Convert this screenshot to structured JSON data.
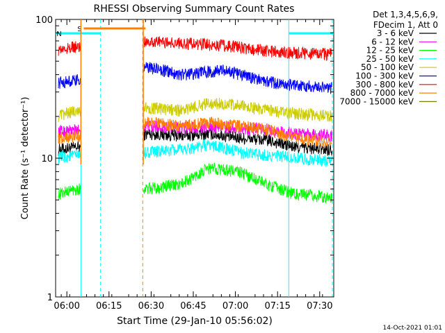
{
  "chart_data": {
    "type": "line",
    "title": "RHESSI Observing Summary Count Rates",
    "xlabel": "Start Time (29-Jan-10 05:56:02)",
    "ylabel": "Count Rate (s⁻¹ detector⁻¹)",
    "y_scale": "log",
    "ylim": [
      1,
      100
    ],
    "xlim_minutes_after_0556": [
      0,
      99
    ],
    "x_ticks": [
      "06:00",
      "06:15",
      "06:30",
      "06:45",
      "07:00",
      "07:15",
      "07:30"
    ],
    "y_ticks": [
      "1",
      "10",
      "100"
    ],
    "legend": {
      "position": "top-right",
      "header": [
        "Det 1,3,4,5,6,9,",
        "FDecim 1, Att 0"
      ]
    },
    "footer_date": "14-Oct-2021 01:01",
    "flags": [
      {
        "label": "S",
        "color": "#ff8000",
        "segments": [
          [
            10,
            32
          ]
        ]
      },
      {
        "label": "N",
        "color": "#00ffff",
        "segments": [
          [
            0,
            16
          ],
          [
            83,
            99
          ]
        ]
      }
    ],
    "vlines": [
      {
        "time": 9,
        "color": "#00ffff",
        "style": "solid"
      },
      {
        "time": 16,
        "color": "#00ffff",
        "style": "dashed"
      },
      {
        "time": 31,
        "color": "#ff8000",
        "style": "dashed"
      },
      {
        "time": 83,
        "color": "#00ffff",
        "style": "solid"
      },
      {
        "time": 98.5,
        "color": "#00ffff",
        "style": "dashed"
      }
    ],
    "series": [
      {
        "name": "3 - 6 keV",
        "color": "#000000",
        "values": [
          [
            1,
            11.5
          ],
          [
            8,
            12
          ],
          [
            33,
            15
          ],
          [
            45,
            14.5
          ],
          [
            55,
            15
          ],
          [
            65,
            14
          ],
          [
            75,
            13.5
          ],
          [
            85,
            12
          ],
          [
            98.5,
            11.5
          ]
        ]
      },
      {
        "name": "6 - 12 keV",
        "color": "#ff00ff",
        "values": [
          [
            1,
            15.5
          ],
          [
            8,
            16
          ],
          [
            33,
            17
          ],
          [
            45,
            16.5
          ],
          [
            55,
            17
          ],
          [
            65,
            16.5
          ],
          [
            75,
            16
          ],
          [
            85,
            15
          ],
          [
            98.5,
            14.5
          ]
        ]
      },
      {
        "name": "12 - 25 keV",
        "color": "#00ff00",
        "values": [
          [
            1,
            5.5
          ],
          [
            7,
            6
          ],
          [
            33,
            6
          ],
          [
            45,
            6.5
          ],
          [
            55,
            8.5
          ],
          [
            65,
            8
          ],
          [
            75,
            6.5
          ],
          [
            85,
            5.5
          ],
          [
            98.5,
            5.2
          ]
        ]
      },
      {
        "name": "25 - 50 keV",
        "color": "#00ffff",
        "values": [
          [
            1,
            10
          ],
          [
            7,
            10.5
          ],
          [
            33,
            11
          ],
          [
            45,
            11.5
          ],
          [
            55,
            12.5
          ],
          [
            65,
            11
          ],
          [
            75,
            10.5
          ],
          [
            85,
            10
          ],
          [
            98.5,
            9.5
          ]
        ]
      },
      {
        "name": "50 - 100 keV",
        "color": "#cccc00",
        "values": [
          [
            1,
            20
          ],
          [
            7,
            22
          ],
          [
            33,
            23
          ],
          [
            45,
            22
          ],
          [
            55,
            25
          ],
          [
            65,
            24
          ],
          [
            75,
            22
          ],
          [
            85,
            21
          ],
          [
            98.5,
            20
          ]
        ]
      },
      {
        "name": "100 - 300 keV",
        "color": "#0000ff",
        "values": [
          [
            1,
            35
          ],
          [
            7,
            36
          ],
          [
            33,
            45
          ],
          [
            45,
            40
          ],
          [
            60,
            43
          ],
          [
            70,
            38
          ],
          [
            80,
            34
          ],
          [
            90,
            33
          ],
          [
            98.5,
            32
          ]
        ]
      },
      {
        "name": "300 - 800 keV",
        "color": "#ff0000",
        "values": [
          [
            1,
            60
          ],
          [
            7,
            63
          ],
          [
            33,
            70
          ],
          [
            45,
            67
          ],
          [
            60,
            65
          ],
          [
            70,
            61
          ],
          [
            80,
            58
          ],
          [
            90,
            57
          ],
          [
            98.5,
            56
          ]
        ]
      },
      {
        "name": "800 - 7000 keV",
        "color": "#ff8000",
        "values": [
          [
            1,
            14
          ],
          [
            8,
            14.5
          ],
          [
            33,
            18
          ],
          [
            45,
            17
          ],
          [
            55,
            18
          ],
          [
            65,
            17
          ],
          [
            75,
            16
          ],
          [
            85,
            14
          ],
          [
            98.5,
            13
          ]
        ]
      },
      {
        "name": "7000 - 15000 keV",
        "color": "#808000",
        "values": []
      }
    ]
  }
}
